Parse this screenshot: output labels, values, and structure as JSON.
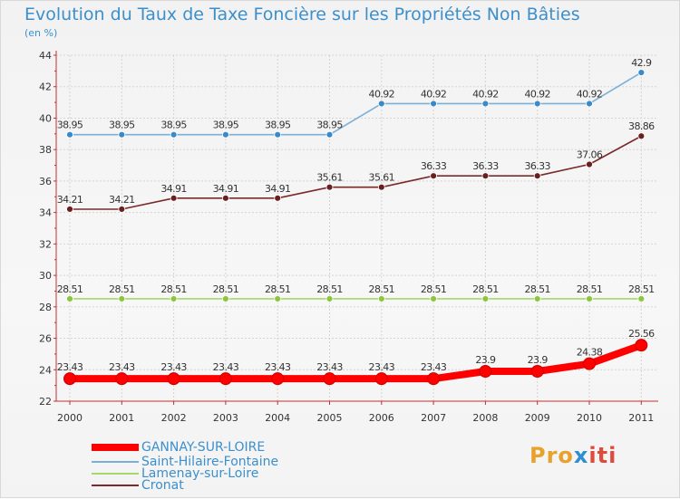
{
  "title": "Evolution du Taux de Taxe Foncière sur les Propriétés Non Bâties",
  "subtitle": "(en %)",
  "brand": {
    "parts": [
      "Pro",
      "x",
      "iti"
    ],
    "colors": [
      "#e8a22b",
      "#2d8ed1",
      "#e04a3a"
    ]
  },
  "chart_data": {
    "type": "line",
    "title": "Evolution du Taux de Taxe Foncière sur les Propriétés Non Bâties",
    "ylabel": "(en %)",
    "xlabel": "",
    "categories": [
      "2000",
      "2001",
      "2002",
      "2003",
      "2004",
      "2005",
      "2006",
      "2007",
      "2008",
      "2009",
      "2010",
      "2011"
    ],
    "ylim": [
      22,
      44
    ],
    "yticks": [
      "22",
      "24",
      "26",
      "28",
      "30",
      "32",
      "34",
      "36",
      "38",
      "40",
      "42",
      "44"
    ],
    "grid": true,
    "legend_position": "bottom-left",
    "series": [
      {
        "name": "GANNAY-SUR-LOIRE",
        "color": "#ff0000",
        "dot": "#ff0000",
        "width": "thick",
        "values": [
          23.43,
          23.43,
          23.43,
          23.43,
          23.43,
          23.43,
          23.43,
          23.43,
          23.9,
          23.9,
          24.38,
          25.56
        ],
        "labels": [
          "23.43",
          "23.43",
          "23.43",
          "23.43",
          "23.43",
          "23.43",
          "23.43",
          "23.43",
          "23.9",
          "23.9",
          "24.38",
          "25.56"
        ]
      },
      {
        "name": "Saint-Hilaire-Fontaine",
        "color": "#7ab0d8",
        "dot": "#3a8ac9",
        "width": "thin",
        "values": [
          38.95,
          38.95,
          38.95,
          38.95,
          38.95,
          38.95,
          40.92,
          40.92,
          40.92,
          40.92,
          40.92,
          42.9
        ],
        "labels": [
          "38.95",
          "38.95",
          "38.95",
          "38.95",
          "38.95",
          "38.95",
          "40.92",
          "40.92",
          "40.92",
          "40.92",
          "40.92",
          "42.9"
        ]
      },
      {
        "name": "Lamenay-sur-Loire",
        "color": "#a6d96a",
        "dot": "#8cc63f",
        "width": "thin",
        "values": [
          28.51,
          28.51,
          28.51,
          28.51,
          28.51,
          28.51,
          28.51,
          28.51,
          28.51,
          28.51,
          28.51,
          28.51
        ],
        "labels": [
          "28.51",
          "28.51",
          "28.51",
          "28.51",
          "28.51",
          "28.51",
          "28.51",
          "28.51",
          "28.51",
          "28.51",
          "28.51",
          "28.51"
        ]
      },
      {
        "name": "Cronat",
        "color": "#7a2a2a",
        "dot": "#6a1f1f",
        "width": "thin",
        "values": [
          34.21,
          34.21,
          34.91,
          34.91,
          34.91,
          35.61,
          35.61,
          36.33,
          36.33,
          36.33,
          37.06,
          38.86
        ],
        "labels": [
          "34.21",
          "34.21",
          "34.91",
          "34.91",
          "34.91",
          "35.61",
          "35.61",
          "36.33",
          "36.33",
          "36.33",
          "37.06",
          "38.86"
        ]
      }
    ]
  }
}
